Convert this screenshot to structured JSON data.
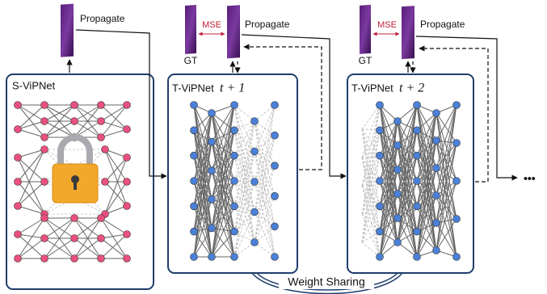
{
  "panels": [
    {
      "label": "S-ViPNet"
    },
    {
      "label": "T-ViPNet",
      "step": "t + 1"
    },
    {
      "label": "T-ViPNet",
      "step": "t + 2"
    }
  ],
  "frames": [
    {
      "label": "Propagate"
    },
    {
      "label": "Propagate",
      "loss": "MSE",
      "target": "GT"
    },
    {
      "label": "Propagate",
      "loss": "MSE",
      "target": "GT"
    }
  ],
  "weight_sharing": "Weight Sharing",
  "continuation": "•••"
}
